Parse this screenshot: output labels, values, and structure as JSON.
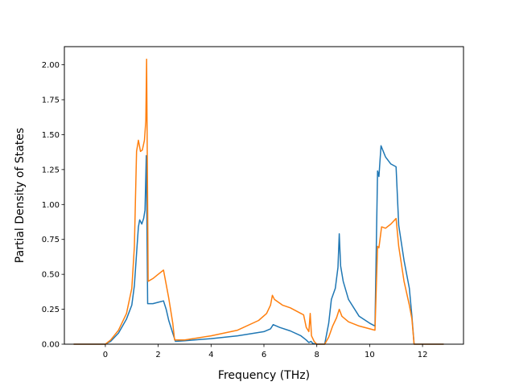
{
  "chart_data": {
    "type": "line",
    "title": "",
    "xlabel": "Frequency (THz)",
    "ylabel": "Partial Density of States",
    "xlim": [
      -1.55,
      13.55
    ],
    "ylim": [
      0,
      2.13
    ],
    "grid": false,
    "legend": "none",
    "x_ticks": [
      {
        "value": 0,
        "label": "0"
      },
      {
        "value": 2,
        "label": "2"
      },
      {
        "value": 4,
        "label": "4"
      },
      {
        "value": 6,
        "label": "6"
      },
      {
        "value": 8,
        "label": "8"
      },
      {
        "value": 10,
        "label": "10"
      },
      {
        "value": 12,
        "label": "12"
      }
    ],
    "y_ticks": [
      {
        "value": 0.0,
        "label": "0.00"
      },
      {
        "value": 0.25,
        "label": "0.25"
      },
      {
        "value": 0.5,
        "label": "0.50"
      },
      {
        "value": 0.75,
        "label": "0.75"
      },
      {
        "value": 1.0,
        "label": "1.00"
      },
      {
        "value": 1.25,
        "label": "1.25"
      },
      {
        "value": 1.5,
        "label": "1.50"
      },
      {
        "value": 1.75,
        "label": "1.75"
      },
      {
        "value": 2.0,
        "label": "2.00"
      }
    ],
    "series": [
      {
        "color": "#1f77b4",
        "points": [
          [
            -1.2,
            0
          ],
          [
            0.0,
            0
          ],
          [
            0.2,
            0.02
          ],
          [
            0.5,
            0.08
          ],
          [
            0.8,
            0.18
          ],
          [
            1.0,
            0.28
          ],
          [
            1.1,
            0.42
          ],
          [
            1.2,
            0.7
          ],
          [
            1.25,
            0.84
          ],
          [
            1.3,
            0.89
          ],
          [
            1.38,
            0.86
          ],
          [
            1.45,
            0.9
          ],
          [
            1.5,
            0.96
          ],
          [
            1.55,
            1.35
          ],
          [
            1.6,
            0.29
          ],
          [
            1.8,
            0.29
          ],
          [
            2.0,
            0.3
          ],
          [
            2.2,
            0.31
          ],
          [
            2.3,
            0.25
          ],
          [
            2.4,
            0.17
          ],
          [
            2.5,
            0.11
          ],
          [
            2.6,
            0.05
          ],
          [
            2.65,
            0.02
          ],
          [
            3.0,
            0.025
          ],
          [
            4.0,
            0.04
          ],
          [
            5.0,
            0.06
          ],
          [
            6.0,
            0.09
          ],
          [
            6.25,
            0.11
          ],
          [
            6.35,
            0.14
          ],
          [
            6.6,
            0.12
          ],
          [
            7.0,
            0.095
          ],
          [
            7.4,
            0.06
          ],
          [
            7.6,
            0.03
          ],
          [
            7.7,
            0.012
          ],
          [
            7.78,
            0.02
          ],
          [
            7.85,
            0.005
          ],
          [
            8.0,
            0
          ],
          [
            8.3,
            0
          ],
          [
            8.45,
            0.15
          ],
          [
            8.55,
            0.32
          ],
          [
            8.7,
            0.4
          ],
          [
            8.8,
            0.55
          ],
          [
            8.85,
            0.79
          ],
          [
            8.9,
            0.56
          ],
          [
            9.0,
            0.45
          ],
          [
            9.2,
            0.32
          ],
          [
            9.6,
            0.2
          ],
          [
            10.0,
            0.15
          ],
          [
            10.2,
            0.13
          ],
          [
            10.3,
            1.24
          ],
          [
            10.35,
            1.2
          ],
          [
            10.43,
            1.42
          ],
          [
            10.6,
            1.34
          ],
          [
            10.8,
            1.29
          ],
          [
            11.0,
            1.27
          ],
          [
            11.1,
            0.85
          ],
          [
            11.3,
            0.6
          ],
          [
            11.5,
            0.4
          ],
          [
            11.6,
            0.2
          ],
          [
            11.68,
            0
          ],
          [
            12.8,
            0
          ]
        ]
      },
      {
        "color": "#ff7f0e",
        "points": [
          [
            -1.2,
            0
          ],
          [
            0.0,
            0
          ],
          [
            0.2,
            0.03
          ],
          [
            0.5,
            0.1
          ],
          [
            0.8,
            0.22
          ],
          [
            1.0,
            0.4
          ],
          [
            1.1,
            0.7
          ],
          [
            1.18,
            1.38
          ],
          [
            1.25,
            1.46
          ],
          [
            1.33,
            1.38
          ],
          [
            1.4,
            1.39
          ],
          [
            1.48,
            1.46
          ],
          [
            1.53,
            1.6
          ],
          [
            1.56,
            2.04
          ],
          [
            1.62,
            0.45
          ],
          [
            1.8,
            0.47
          ],
          [
            2.0,
            0.5
          ],
          [
            2.2,
            0.53
          ],
          [
            2.4,
            0.33
          ],
          [
            2.55,
            0.15
          ],
          [
            2.62,
            0.03
          ],
          [
            3.0,
            0.03
          ],
          [
            4.0,
            0.06
          ],
          [
            5.0,
            0.1
          ],
          [
            5.8,
            0.17
          ],
          [
            6.1,
            0.22
          ],
          [
            6.25,
            0.28
          ],
          [
            6.32,
            0.35
          ],
          [
            6.4,
            0.32
          ],
          [
            6.7,
            0.28
          ],
          [
            7.0,
            0.26
          ],
          [
            7.4,
            0.22
          ],
          [
            7.5,
            0.21
          ],
          [
            7.6,
            0.12
          ],
          [
            7.7,
            0.09
          ],
          [
            7.75,
            0.22
          ],
          [
            7.8,
            0.06
          ],
          [
            7.9,
            0.02
          ],
          [
            8.0,
            0
          ],
          [
            8.3,
            0
          ],
          [
            8.45,
            0.05
          ],
          [
            8.6,
            0.13
          ],
          [
            8.75,
            0.19
          ],
          [
            8.85,
            0.25
          ],
          [
            8.95,
            0.2
          ],
          [
            9.2,
            0.16
          ],
          [
            9.6,
            0.13
          ],
          [
            10.0,
            0.11
          ],
          [
            10.2,
            0.1
          ],
          [
            10.3,
            0.7
          ],
          [
            10.35,
            0.69
          ],
          [
            10.45,
            0.84
          ],
          [
            10.6,
            0.83
          ],
          [
            10.8,
            0.86
          ],
          [
            11.0,
            0.9
          ],
          [
            11.1,
            0.7
          ],
          [
            11.3,
            0.45
          ],
          [
            11.5,
            0.28
          ],
          [
            11.6,
            0.18
          ],
          [
            11.68,
            0
          ],
          [
            12.8,
            0
          ]
        ]
      }
    ]
  }
}
